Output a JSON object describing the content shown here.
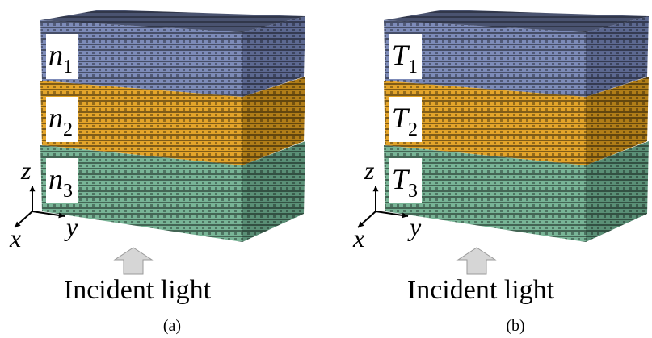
{
  "panels": [
    {
      "layers": [
        {
          "symbol": "n",
          "subscript": "1"
        },
        {
          "symbol": "n",
          "subscript": "2"
        },
        {
          "symbol": "n",
          "subscript": "3"
        }
      ],
      "axes": {
        "x": "x",
        "y": "y",
        "z": "z"
      },
      "arrow_label": "Incident light",
      "caption": "(a)"
    },
    {
      "layers": [
        {
          "symbol": "T",
          "subscript": "1"
        },
        {
          "symbol": "T",
          "subscript": "2"
        },
        {
          "symbol": "T",
          "subscript": "3"
        }
      ],
      "axes": {
        "x": "x",
        "y": "y",
        "z": "z"
      },
      "arrow_label": "Incident light",
      "caption": "(b)"
    }
  ]
}
